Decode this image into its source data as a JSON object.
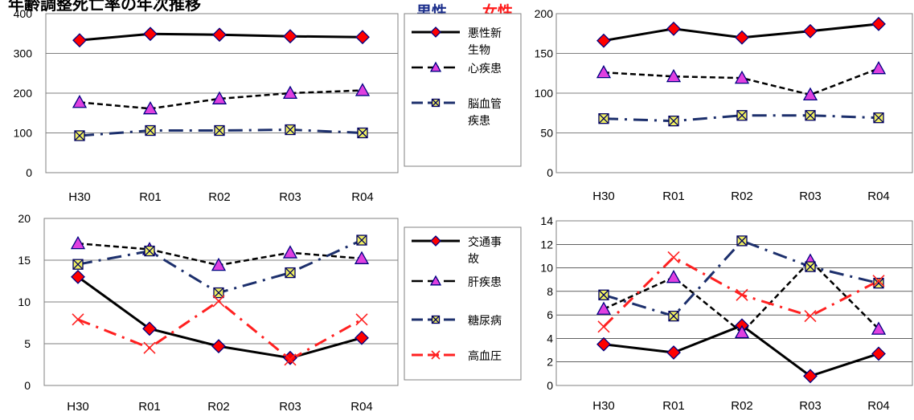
{
  "header": {
    "title_fragment": "年齢調整死亡率の年次推移",
    "male_label": "男性",
    "female_label": "女性"
  },
  "colors": {
    "male_label": "#1c2f8c",
    "female_label": "#ff1a1a",
    "cancer_marker": "#ff0000",
    "heart_marker": "#e040e0",
    "cerebro_marker": "#f0f060",
    "cerebro_line": "#1c2f6c",
    "hypertension": "#ff2020"
  },
  "legends": [
    {
      "items": [
        {
          "label_lines": [
            "悪性新",
            "生物"
          ],
          "style": "solid",
          "marker": "diamond"
        },
        {
          "label_lines": [
            "心疾患"
          ],
          "style": "dashed",
          "marker": "triangle"
        },
        {
          "label_lines": [
            "脳血管",
            "疾患"
          ],
          "style": "dashdot",
          "marker": "xsquare"
        }
      ]
    },
    {
      "items": [
        {
          "label_lines": [
            "交通事",
            "故"
          ],
          "style": "solid",
          "marker": "diamond"
        },
        {
          "label_lines": [
            "肝疾患"
          ],
          "style": "dashed",
          "marker": "triangle"
        },
        {
          "label_lines": [
            "糖尿病"
          ],
          "style": "dashdot",
          "marker": "xsquare"
        },
        {
          "label_lines": [
            "高血圧"
          ],
          "style": "reddash",
          "marker": "x"
        }
      ]
    }
  ],
  "chart_data": [
    {
      "type": "line",
      "panel": "male-major",
      "categories": [
        "H30",
        "R01",
        "R02",
        "R03",
        "R04"
      ],
      "yticks": [
        "0",
        "100",
        "200",
        "300",
        "400"
      ],
      "ylim": [
        0,
        400
      ],
      "grid": true,
      "series": [
        {
          "name": "悪性新生物",
          "values": [
            333,
            349,
            347,
            343,
            341
          ],
          "style": "solid",
          "marker": "diamond"
        },
        {
          "name": "心疾患",
          "values": [
            177,
            161,
            186,
            200,
            207
          ],
          "style": "dashed",
          "marker": "triangle"
        },
        {
          "name": "脳血管疾患",
          "values": [
            93,
            106,
            106,
            108,
            100
          ],
          "style": "dashdot",
          "marker": "xsquare"
        }
      ]
    },
    {
      "type": "line",
      "panel": "female-major",
      "categories": [
        "H30",
        "R01",
        "R02",
        "R03",
        "R04"
      ],
      "yticks": [
        "0",
        "50",
        "100",
        "150",
        "200"
      ],
      "ylim": [
        0,
        200
      ],
      "grid": true,
      "series": [
        {
          "name": "悪性新生物",
          "values": [
            166,
            181,
            170,
            178,
            187
          ],
          "style": "solid",
          "marker": "diamond"
        },
        {
          "name": "心疾患",
          "values": [
            126,
            121,
            119,
            98,
            131
          ],
          "style": "dashed",
          "marker": "triangle"
        },
        {
          "name": "脳血管疾患",
          "values": [
            68,
            65,
            72,
            72,
            69
          ],
          "style": "dashdot",
          "marker": "xsquare"
        }
      ]
    },
    {
      "type": "line",
      "panel": "male-minor",
      "categories": [
        "H30",
        "R01",
        "R02",
        "R03",
        "R04"
      ],
      "yticks": [
        "0",
        "5",
        "10",
        "15",
        "20"
      ],
      "ylim": [
        0,
        20
      ],
      "grid": true,
      "series": [
        {
          "name": "交通事故",
          "values": [
            13.0,
            6.8,
            4.7,
            3.3,
            5.7
          ],
          "style": "solid",
          "marker": "diamond"
        },
        {
          "name": "肝疾患",
          "values": [
            17.0,
            16.3,
            14.4,
            15.9,
            15.2
          ],
          "style": "dashed",
          "marker": "triangle"
        },
        {
          "name": "糖尿病",
          "values": [
            14.5,
            16.1,
            11.1,
            13.5,
            17.4
          ],
          "style": "dashdot",
          "marker": "xsquare"
        },
        {
          "name": "高血圧",
          "values": [
            7.9,
            4.5,
            10.1,
            3.1,
            7.9
          ],
          "style": "reddash",
          "marker": "x"
        }
      ]
    },
    {
      "type": "line",
      "panel": "female-minor",
      "categories": [
        "H30",
        "R01",
        "R02",
        "R03",
        "R04"
      ],
      "yticks": [
        "0",
        "2",
        "4",
        "6",
        "8",
        "10",
        "12",
        "14"
      ],
      "ylim": [
        0,
        14
      ],
      "grid": true,
      "series": [
        {
          "name": "交通事故",
          "values": [
            3.5,
            2.8,
            5.1,
            0.8,
            2.7
          ],
          "style": "solid",
          "marker": "diamond"
        },
        {
          "name": "肝疾患",
          "values": [
            6.5,
            9.2,
            4.5,
            10.6,
            4.8
          ],
          "style": "dashed",
          "marker": "triangle"
        },
        {
          "name": "糖尿病",
          "values": [
            7.7,
            5.9,
            12.3,
            10.1,
            8.7
          ],
          "style": "dashdot",
          "marker": "xsquare"
        },
        {
          "name": "高血圧",
          "values": [
            5.0,
            10.9,
            7.7,
            5.9,
            8.9
          ],
          "style": "reddash",
          "marker": "x"
        }
      ]
    }
  ]
}
